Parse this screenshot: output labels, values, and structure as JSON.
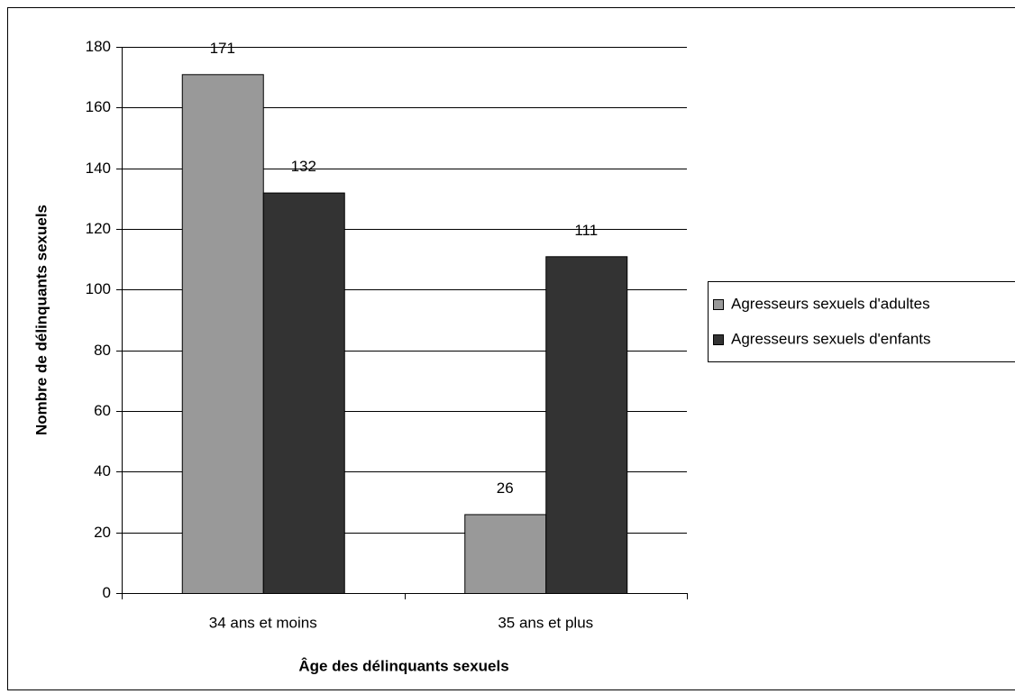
{
  "chart_data": {
    "type": "bar",
    "y_label": "Nombre de délinquants sexuels",
    "x_label": "Âge des délinquants sexuels",
    "categories": [
      "34 ans et moins",
      "35 ans et plus"
    ],
    "series": [
      {
        "name": "Agresseurs sexuels d'adultes",
        "color": "#999999",
        "values": [
          171,
          26
        ]
      },
      {
        "name": "Agresseurs sexuels d'enfants",
        "color": "#333333",
        "values": [
          132,
          111
        ]
      }
    ],
    "ylim": [
      0,
      180
    ],
    "yticks": [
      0,
      20,
      40,
      60,
      80,
      100,
      120,
      140,
      160,
      180
    ],
    "grid": true,
    "legend": "right"
  }
}
